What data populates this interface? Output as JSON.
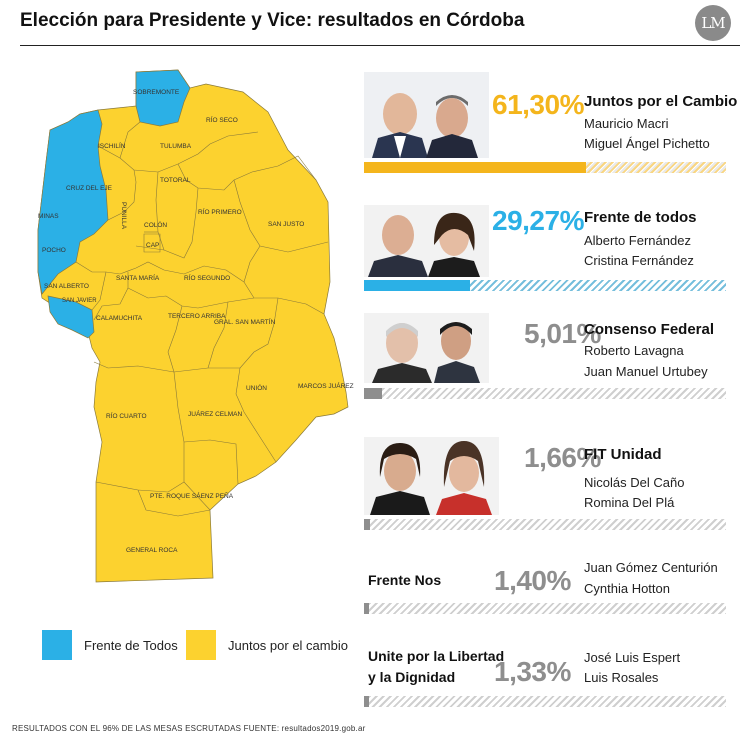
{
  "header": {
    "title": "Elección para Presidente y Vice: resultados en Córdoba",
    "logo_text": "LM"
  },
  "colors": {
    "frente_de_todos": "#2bb0e6",
    "juntos": "#fcd22f",
    "gray": "#8e8e8e",
    "border": "#8a7a3a"
  },
  "map": {
    "departments": {
      "sobremonte": "SOBREMONTE",
      "rio_seco": "RÍO SECO",
      "ischilin": "ISCHILÍN",
      "tulumba": "TULUMBA",
      "totoral": "TOTORAL",
      "cruz_del_eje": "CRUZ DEL EJE",
      "minas": "MINAS",
      "punilla": "PUNILLA",
      "colon": "COLÓN",
      "rio_primero": "RÍO PRIMERO",
      "san_justo": "SAN JUSTO",
      "pocho": "POCHO",
      "cap": "CAP",
      "santa_maria": "SANTA MARÍA",
      "rio_segundo": "RÍO SEGUNDO",
      "san_alberto": "SAN ALBERTO",
      "san_javier": "SAN JAVIER",
      "calamuchita": "CALAMUCHITA",
      "tercero_arriba": "TERCERO ARRIBA",
      "gral_san_martin": "GRAL. SAN MARTÍN",
      "union": "UNIÓN",
      "marcos_juarez": "MARCOS JUÁREZ",
      "rio_cuarto": "RÍO CUARTO",
      "juarez_celman": "JUÁREZ CELMAN",
      "roque_saenz_pena": "PTE. ROQUE SÁENZ PEÑA",
      "general_roca": "GENERAL ROCA"
    }
  },
  "legend": {
    "frente": "Frente de Todos",
    "juntos": "Juntos por el cambio"
  },
  "footer": "RESULTADOS CON EL 96% DE LAS MESAS ESCRUTADAS FUENTE: resultados2019.gob.ar",
  "results": [
    {
      "party": "Juntos por el Cambio",
      "pct": "61,30%",
      "cand1": "Mauricio Macri",
      "cand2": "Miguel Ángel Pichetto"
    },
    {
      "party": "Frente de todos",
      "pct": "29,27%",
      "cand1": "Alberto Fernández",
      "cand2": "Cristina Fernández"
    },
    {
      "party": "Consenso Federal",
      "pct": "5,01%",
      "cand1": "Roberto Lavagna",
      "cand2": "Juan Manuel Urtubey"
    },
    {
      "party": "FIT Unidad",
      "pct": "1,66%",
      "cand1": "Nicolás Del Caño",
      "cand2": "Romina Del Plá"
    },
    {
      "party": "Frente Nos",
      "pct": "1,40%",
      "cand1": "Juan Gómez Centurión",
      "cand2": "Cynthia Hotton"
    },
    {
      "party_line1": "Unite por la Libertad",
      "party_line2": "y la Dignidad",
      "pct": "1,33%",
      "cand1": "José Luis Espert",
      "cand2": "Luis Rosales"
    }
  ],
  "chart_data": {
    "type": "bar",
    "title": "Elección para Presidente y Vice: resultados en Córdoba",
    "categories": [
      "Juntos por el Cambio",
      "Frente de todos",
      "Consenso Federal",
      "FIT Unidad",
      "Frente Nos",
      "Unite por la Libertad y la Dignidad"
    ],
    "values": [
      61.3,
      29.27,
      5.01,
      1.66,
      1.4,
      1.33
    ],
    "ylim": [
      0,
      100
    ],
    "bar_colors": [
      "#f4b51c",
      "#2bb0e6",
      "#8e8e8e",
      "#8e8e8e",
      "#8e8e8e",
      "#8e8e8e"
    ],
    "map_series": [
      {
        "name": "Frente de Todos",
        "departments": [
          "Sobremonte",
          "Cruz del Eje",
          "Minas",
          "Pocho",
          "San Javier"
        ]
      },
      {
        "name": "Juntos por el cambio",
        "departments": [
          "Río Seco",
          "Ischilín",
          "Tulumba",
          "Totoral",
          "Punilla",
          "Colón",
          "Río Primero",
          "San Justo",
          "Capital",
          "Santa María",
          "Río Segundo",
          "San Alberto",
          "Calamuchita",
          "Tercero Arriba",
          "Gral. San Martín",
          "Unión",
          "Marcos Juárez",
          "Río Cuarto",
          "Juárez Celman",
          "Pte. Roque Sáenz Peña",
          "General Roca"
        ]
      }
    ]
  }
}
